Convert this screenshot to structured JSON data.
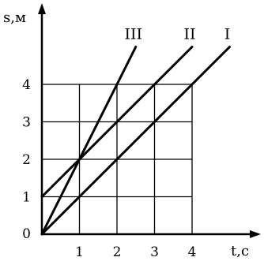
{
  "chart_data": {
    "type": "line",
    "title": "",
    "xlabel": "t,c",
    "ylabel": "s,м",
    "xlim": [
      0,
      4
    ],
    "ylim": [
      0,
      4
    ],
    "x_ticks": [
      "0",
      "1",
      "2",
      "3",
      "4"
    ],
    "y_ticks": [
      "1",
      "2",
      "3",
      "4"
    ],
    "grid": true,
    "series": [
      {
        "name": "I",
        "x": [
          0,
          5
        ],
        "y": [
          0,
          5
        ]
      },
      {
        "name": "II",
        "x": [
          0,
          4
        ],
        "y": [
          1,
          5
        ]
      },
      {
        "name": "III",
        "x": [
          0,
          2.5
        ],
        "y": [
          0,
          5
        ]
      }
    ]
  }
}
